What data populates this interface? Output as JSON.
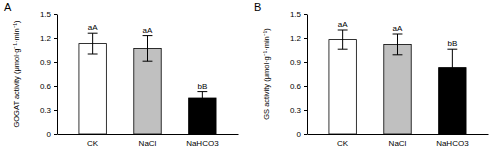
{
  "chart_data": [
    {
      "type": "bar",
      "title": "A",
      "y_label": "GOGAT activity (μmol·g⁻¹·min⁻¹)",
      "categories": [
        "CK",
        "NaCl",
        "NaHCO3"
      ],
      "values": [
        1.13,
        1.07,
        0.45
      ],
      "errors": [
        0.13,
        0.16,
        0.08
      ],
      "annotations": [
        "aA",
        "aA",
        "bB"
      ],
      "colors": [
        "#ffffff",
        "#c0c0c0",
        "#000000"
      ],
      "ylim": [
        0,
        1.5
      ],
      "yticks": [
        0,
        0.3,
        0.6,
        0.9,
        1.2,
        1.5
      ],
      "grid": false
    },
    {
      "type": "bar",
      "title": "B",
      "y_label": "GS activity (μmol·g⁻¹·min⁻¹)",
      "categories": [
        "CK",
        "NaCl",
        "NaHCO3"
      ],
      "values": [
        1.18,
        1.12,
        0.83
      ],
      "errors": [
        0.12,
        0.13,
        0.23
      ],
      "annotations": [
        "aA",
        "aA",
        "bB"
      ],
      "colors": [
        "#ffffff",
        "#c0c0c0",
        "#000000"
      ],
      "ylim": [
        0,
        1.5
      ],
      "yticks": [
        0,
        0.3,
        0.6,
        0.9,
        1.2,
        1.5
      ],
      "grid": false
    }
  ]
}
